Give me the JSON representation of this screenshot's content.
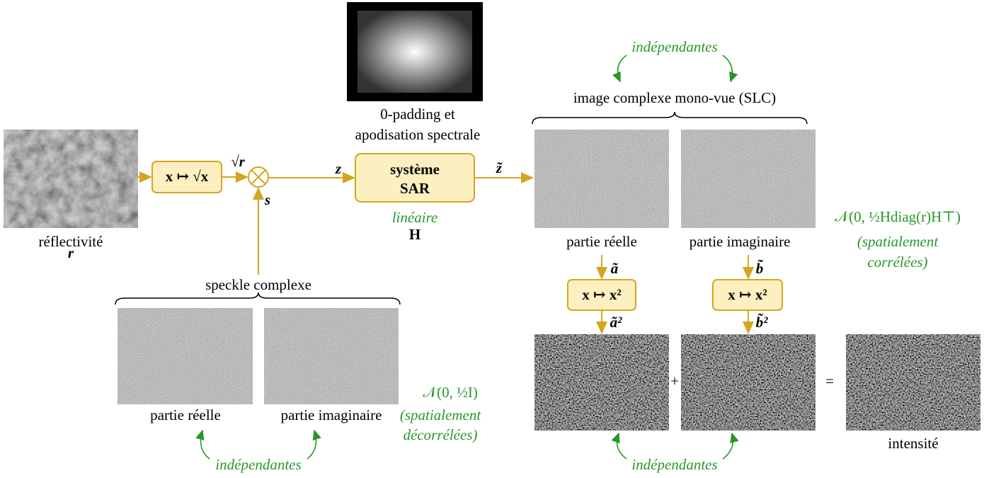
{
  "apodisation": {
    "caption": [
      "0-padding et",
      "apodisation spectrale"
    ]
  },
  "reflectivity": {
    "label": "réflectivité",
    "symbol": "r"
  },
  "sqrt_box": "x ↦ √x",
  "sqrt_r": "√r",
  "speckle_symbol": "s",
  "z": "z",
  "z_tilde": "z̃",
  "sar": {
    "lines": [
      "système",
      "SAR"
    ],
    "property": "linéaire",
    "operator": "H"
  },
  "slc": {
    "title": "image complexe mono-vue (SLC)",
    "relation": "indépendantes",
    "real": "partie réelle",
    "imag": "partie imaginaire",
    "law": "𝒩(0, ½Hdiag(r)H⊤)",
    "note": [
      "(spatialement",
      "corrélées)"
    ]
  },
  "squares": {
    "a": "ã",
    "b": "b̃",
    "box_a": "x ↦ x²",
    "box_b": "x ↦ x²",
    "a2": "ã²",
    "b2": "b̃²",
    "plus": "+",
    "equals": "=",
    "intensity": "intensité",
    "relation": "indépendantes"
  },
  "speckle": {
    "title": "speckle complexe",
    "real": "partie réelle",
    "imag": "partie imaginaire",
    "relation": "indépendantes",
    "law": "𝒩(0, ½I)",
    "note": [
      "(spatialement",
      "décorrélées)"
    ]
  }
}
